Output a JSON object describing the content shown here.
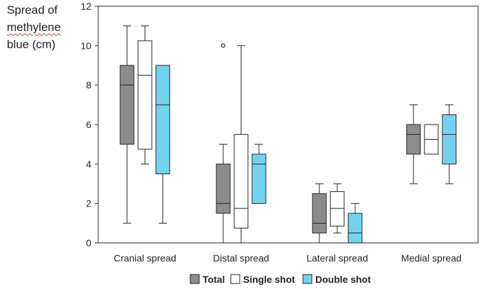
{
  "chart_data": {
    "type": "box",
    "ylabel_lines": [
      "Spread of",
      "methylene",
      "blue (cm)"
    ],
    "ylim": [
      0,
      12
    ],
    "yticks": [
      0,
      2,
      4,
      6,
      8,
      10,
      12
    ],
    "categories": [
      "Cranial spread",
      "Distal spread",
      "Lateral spread",
      "Medial spread"
    ],
    "series": [
      {
        "name": "Total",
        "color": "#8c8c8c",
        "boxes": [
          {
            "min": 1,
            "q1": 5,
            "median": 8,
            "q3": 9,
            "max": 11,
            "outliers": []
          },
          {
            "min": 0,
            "q1": 1.5,
            "median": 2,
            "q3": 4,
            "max": 5,
            "outliers": [
              10
            ]
          },
          {
            "min": 0,
            "q1": 0.5,
            "median": 1,
            "q3": 2.5,
            "max": 3,
            "outliers": []
          },
          {
            "min": 3,
            "q1": 4.5,
            "median": 5.5,
            "q3": 6,
            "max": 7,
            "outliers": []
          }
        ]
      },
      {
        "name": "Single shot",
        "color": "#ffffff",
        "boxes": [
          {
            "min": 4,
            "q1": 4.75,
            "median": 8.5,
            "q3": 10.25,
            "max": 11,
            "outliers": []
          },
          {
            "min": 0,
            "q1": 0.75,
            "median": 1.75,
            "q3": 5.5,
            "max": 10,
            "outliers": []
          },
          {
            "min": 0.5,
            "q1": 0.85,
            "median": 1.75,
            "q3": 2.6,
            "max": 3,
            "outliers": []
          },
          {
            "min": 4.5,
            "q1": 4.5,
            "median": 5.25,
            "q3": 6,
            "max": 6,
            "outliers": []
          }
        ]
      },
      {
        "name": "Double shot",
        "color": "#74d3ec",
        "boxes": [
          {
            "min": 1,
            "q1": 3.5,
            "median": 7,
            "q3": 9,
            "max": 9,
            "outliers": []
          },
          {
            "min": 2,
            "q1": 2,
            "median": 4,
            "q3": 4.5,
            "max": 5,
            "outliers": []
          },
          {
            "min": 0,
            "q1": 0,
            "median": 0.5,
            "q3": 1.5,
            "max": 2,
            "outliers": []
          },
          {
            "min": 3,
            "q1": 4,
            "median": 5.5,
            "q3": 6.5,
            "max": 7,
            "outliers": []
          }
        ]
      }
    ]
  }
}
